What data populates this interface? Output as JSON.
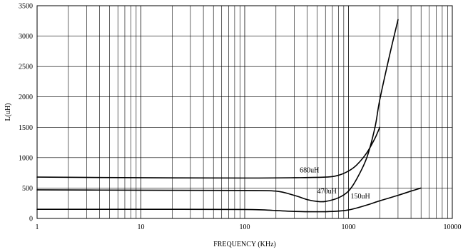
{
  "chart_data": {
    "type": "line",
    "xlabel": "FREQUENCY (KHz)",
    "ylabel": "L(uH)",
    "x_scale": "log",
    "xlim": [
      1,
      10000
    ],
    "ylim": [
      0,
      3500
    ],
    "grid": true,
    "x_tick_labels": [
      {
        "value": 1,
        "label": "1"
      },
      {
        "value": 10,
        "label": "10"
      },
      {
        "value": 100,
        "label": "100"
      },
      {
        "value": 1000,
        "label": "1000"
      },
      {
        "value": 10000,
        "label": "10000"
      }
    ],
    "y_tick_labels": [
      {
        "value": 0,
        "label": "0"
      },
      {
        "value": 500,
        "label": "500"
      },
      {
        "value": 1000,
        "label": "1000"
      },
      {
        "value": 1500,
        "label": "1500"
      },
      {
        "value": 2000,
        "label": "2000"
      },
      {
        "value": 2500,
        "label": "2500"
      },
      {
        "value": 3000,
        "label": "3000"
      },
      {
        "value": 3500,
        "label": "3500"
      }
    ],
    "series": [
      {
        "name": "680uH",
        "label_at": {
          "x": 420,
          "y": 760
        },
        "points": [
          [
            1,
            680
          ],
          [
            10,
            670
          ],
          [
            100,
            665
          ],
          [
            300,
            670
          ],
          [
            600,
            680
          ],
          [
            800,
            710
          ],
          [
            1000,
            780
          ],
          [
            1200,
            880
          ],
          [
            1500,
            1080
          ],
          [
            1800,
            1320
          ],
          [
            2000,
            1500
          ]
        ]
      },
      {
        "name": "470uH",
        "label_at": {
          "x": 620,
          "y": 410
        },
        "points": [
          [
            1,
            470
          ],
          [
            10,
            465
          ],
          [
            100,
            460
          ],
          [
            200,
            450
          ],
          [
            300,
            380
          ],
          [
            400,
            310
          ],
          [
            500,
            280
          ],
          [
            600,
            280
          ],
          [
            800,
            340
          ],
          [
            1000,
            450
          ],
          [
            1200,
            650
          ],
          [
            1500,
            1000
          ],
          [
            1800,
            1500
          ],
          [
            2000,
            1950
          ],
          [
            2500,
            2700
          ],
          [
            3000,
            3270
          ]
        ]
      },
      {
        "name": "150uH",
        "label_at": {
          "x": 1300,
          "y": 330
        },
        "points": [
          [
            1,
            150
          ],
          [
            10,
            150
          ],
          [
            100,
            148
          ],
          [
            200,
            130
          ],
          [
            300,
            115
          ],
          [
            500,
            110
          ],
          [
            700,
            115
          ],
          [
            1000,
            140
          ],
          [
            1500,
            220
          ],
          [
            2000,
            290
          ],
          [
            3000,
            380
          ],
          [
            4000,
            450
          ],
          [
            5000,
            500
          ]
        ]
      }
    ]
  }
}
